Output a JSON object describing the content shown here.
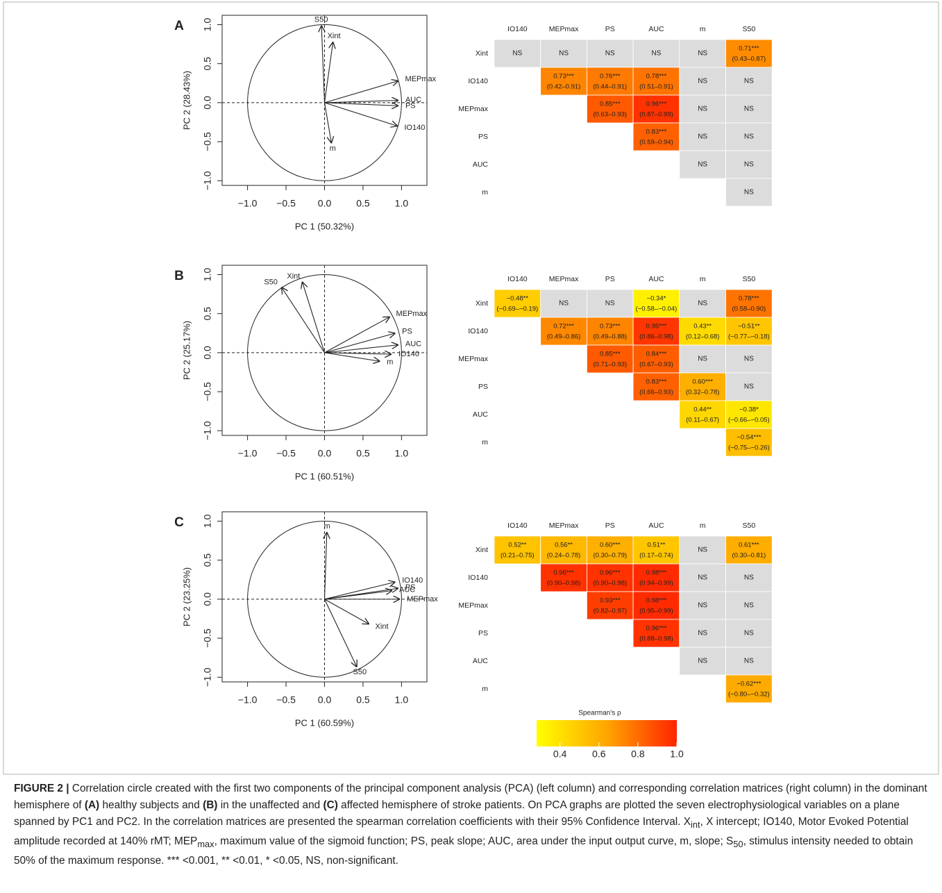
{
  "chart_data": [
    {
      "type": "biplot",
      "panel": "A",
      "xlabel": "PC 1 (50.32%)",
      "ylabel": "PC 2 (28.43%)",
      "xlim": [
        -1.33,
        1.33
      ],
      "ylim": [
        -1.06,
        1.12
      ],
      "xticks": [
        {
          "value": -1,
          "label": "−1.0"
        },
        {
          "value": -0.5,
          "label": "−0.5"
        },
        {
          "value": 0,
          "label": "0.0"
        },
        {
          "value": 0.5,
          "label": "0.5"
        },
        {
          "value": 1,
          "label": "1.0"
        }
      ],
      "yticks": [
        {
          "value": -1,
          "label": "−1.0"
        },
        {
          "value": -0.5,
          "label": "−0.5"
        },
        {
          "value": 0,
          "label": "0.0"
        },
        {
          "value": 0.5,
          "label": "0.5"
        },
        {
          "value": 1,
          "label": "1.0"
        }
      ],
      "labels": [
        "S50",
        "Xint",
        "MEPmax",
        "AUC",
        "PS",
        "IO140",
        "m"
      ],
      "x": [
        -0.04,
        0.11,
        0.96,
        0.96,
        0.96,
        0.95,
        0.09
      ],
      "y": [
        0.99,
        0.78,
        0.28,
        0.03,
        -0.04,
        -0.3,
        -0.52
      ]
    },
    {
      "type": "heatmap",
      "columns": [
        "IO140",
        "MEPmax",
        "PS",
        "AUC",
        "m",
        "S50"
      ],
      "rows": [
        "Xint",
        "IO140",
        "MEPmax",
        "PS",
        "AUC",
        "m"
      ],
      "ns_color": "#dcdcdc",
      "colors": [
        "#ffff00",
        "#ffa500",
        "#ff2400"
      ],
      "clim": [
        0.28,
        1.0
      ],
      "cells": [
        [
          {
            "label": "NS"
          },
          {
            "label": "NS"
          },
          {
            "label": "NS"
          },
          {
            "label": "NS"
          },
          {
            "label": "NS"
          },
          {
            "value": 0.71,
            "label": "0.71***",
            "ci": "(0.43–0.87)"
          }
        ],
        [
          {
            "value": 0.73,
            "label": "0.73***",
            "ci": "(0.42–0.91)"
          },
          {
            "value": 0.76,
            "label": "0.76***",
            "ci": "(0.44–0.91)"
          },
          {
            "value": 0.78,
            "label": "0.78***",
            "ci": "(0.51–0.91)"
          },
          {
            "label": "NS"
          },
          {
            "label": "NS"
          }
        ],
        [
          {
            "value": 0.85,
            "label": "0.85***",
            "ci": "(0.63–0.93)"
          },
          {
            "value": 0.96,
            "label": "0.96***",
            "ci": "(0.87–0.99)"
          },
          {
            "label": "NS"
          },
          {
            "label": "NS"
          }
        ],
        [
          {
            "value": 0.83,
            "label": "0.83***",
            "ci": "(0.59–0.94)"
          },
          {
            "label": "NS"
          },
          {
            "label": "NS"
          }
        ],
        [
          {
            "label": "NS"
          },
          {
            "label": "NS"
          }
        ],
        [
          {
            "label": "NS"
          }
        ]
      ]
    },
    {
      "type": "biplot",
      "panel": "B",
      "xlabel": "PC 1 (60.51%)",
      "ylabel": "PC 2 (25.17%)",
      "xlim": [
        -1.33,
        1.33
      ],
      "ylim": [
        -1.06,
        1.12
      ],
      "xticks": [
        {
          "value": -1,
          "label": "−1.0"
        },
        {
          "value": -0.5,
          "label": "−0.5"
        },
        {
          "value": 0,
          "label": "0.0"
        },
        {
          "value": 0.5,
          "label": "0.5"
        },
        {
          "value": 1,
          "label": "1.0"
        }
      ],
      "yticks": [
        {
          "value": -1,
          "label": "−1.0"
        },
        {
          "value": -0.5,
          "label": "−0.5"
        },
        {
          "value": 0,
          "label": "0.0"
        },
        {
          "value": 0.5,
          "label": "0.5"
        },
        {
          "value": 1,
          "label": "1.0"
        }
      ],
      "labels": [
        "S50",
        "Xint",
        "MEPmax",
        "PS",
        "AUC",
        "IO140",
        "m"
      ],
      "x": [
        -0.56,
        -0.29,
        0.85,
        0.92,
        0.96,
        0.87,
        0.72
      ],
      "y": [
        0.84,
        0.91,
        0.46,
        0.25,
        0.1,
        -0.02,
        -0.11
      ]
    },
    {
      "type": "heatmap",
      "columns": [
        "IO140",
        "MEPmax",
        "PS",
        "AUC",
        "m",
        "S50"
      ],
      "rows": [
        "Xint",
        "IO140",
        "MEPmax",
        "PS",
        "AUC",
        "m"
      ],
      "ns_color": "#dcdcdc",
      "colors": [
        "#ffff00",
        "#ffa500",
        "#ff2400"
      ],
      "clim": [
        0.28,
        1.0
      ],
      "cells": [
        [
          {
            "value": -0.48,
            "label": "−0.48**",
            "ci": "(−0.69–−0.19)"
          },
          {
            "label": "NS"
          },
          {
            "label": "NS"
          },
          {
            "value": -0.34,
            "label": "−0.34*",
            "ci": "(−0.58–−0.04)"
          },
          {
            "label": "NS"
          },
          {
            "value": 0.78,
            "label": "0.78***",
            "ci": "(0.58–0.90)"
          }
        ],
        [
          {
            "value": 0.72,
            "label": "0.72***",
            "ci": "(0.49–0.86)"
          },
          {
            "value": 0.73,
            "label": "0.73***",
            "ci": "(0.49–0.88)"
          },
          {
            "value": 0.95,
            "label": "0.95***",
            "ci": "(0.86–0.98)"
          },
          {
            "value": 0.43,
            "label": "0.43**",
            "ci": "(0.12–0.68)"
          },
          {
            "value": -0.51,
            "label": "−0.51**",
            "ci": "(−0.77–−0.18)"
          }
        ],
        [
          {
            "value": 0.85,
            "label": "0.85***",
            "ci": "(0.71–0.93)"
          },
          {
            "value": 0.84,
            "label": "0.84***",
            "ci": "(0.67–0.93)"
          },
          {
            "label": "NS"
          },
          {
            "label": "NS"
          }
        ],
        [
          {
            "value": 0.83,
            "label": "0.83***",
            "ci": "(0.66–0.93)"
          },
          {
            "value": 0.6,
            "label": "0.60***",
            "ci": "(0.32–0.78)"
          },
          {
            "label": "NS"
          }
        ],
        [
          {
            "value": 0.44,
            "label": "0.44**",
            "ci": "(0.11–0.67)"
          },
          {
            "value": -0.38,
            "label": "−0.38*",
            "ci": "(−0.66–−0.05)"
          }
        ],
        [
          {
            "value": -0.54,
            "label": "−0.54***",
            "ci": "(−0.75–−0.26)"
          }
        ]
      ]
    },
    {
      "type": "biplot",
      "panel": "C",
      "xlabel": "PC 1 (60.59%)",
      "ylabel": "PC 2 (23.25%)",
      "xlim": [
        -1.33,
        1.33
      ],
      "ylim": [
        -1.06,
        1.12
      ],
      "xticks": [
        {
          "value": -1,
          "label": "−1.0"
        },
        {
          "value": -0.5,
          "label": "−0.5"
        },
        {
          "value": 0,
          "label": "0.0"
        },
        {
          "value": 0.5,
          "label": "0.5"
        },
        {
          "value": 1,
          "label": "1.0"
        }
      ],
      "yticks": [
        {
          "value": -1,
          "label": "−1.0"
        },
        {
          "value": -0.5,
          "label": "−0.5"
        },
        {
          "value": 0,
          "label": "0.0"
        },
        {
          "value": 0.5,
          "label": "0.5"
        },
        {
          "value": 1,
          "label": "1.0"
        }
      ],
      "labels": [
        "m",
        "IO140",
        "PS",
        "AUC",
        "MEPmax",
        "Xint",
        "S50"
      ],
      "x": [
        0.03,
        0.92,
        0.96,
        0.88,
        0.98,
        0.58,
        0.42
      ],
      "y": [
        0.86,
        0.22,
        0.14,
        0.11,
        0.0,
        -0.32,
        -0.87
      ]
    },
    {
      "type": "heatmap",
      "columns": [
        "IO140",
        "MEPmax",
        "PS",
        "AUC",
        "m",
        "S50"
      ],
      "rows": [
        "Xint",
        "IO140",
        "MEPmax",
        "PS",
        "AUC",
        "m"
      ],
      "ns_color": "#dcdcdc",
      "colors": [
        "#ffff00",
        "#ffa500",
        "#ff2400"
      ],
      "clim": [
        0.28,
        1.0
      ],
      "cells": [
        [
          {
            "value": 0.52,
            "label": "0.52**",
            "ci": "(0.21–0.75)"
          },
          {
            "value": 0.56,
            "label": "0.56**",
            "ci": "(0.24–0.78)"
          },
          {
            "value": 0.6,
            "label": "0.60***",
            "ci": "(0.30–0.79)"
          },
          {
            "value": 0.51,
            "label": "0.51**",
            "ci": "(0.17–0.74)"
          },
          {
            "label": "NS"
          },
          {
            "value": 0.61,
            "label": "0.61***",
            "ci": "(0.30–0.81)"
          }
        ],
        [
          {
            "value": 0.96,
            "label": "0.96***",
            "ci": "(0.90–0.98)"
          },
          {
            "value": 0.96,
            "label": "0.96***",
            "ci": "(0.90–0.98)"
          },
          {
            "value": 0.98,
            "label": "0.98***",
            "ci": "(0.94–0.99)"
          },
          {
            "label": "NS"
          },
          {
            "label": "NS"
          }
        ],
        [
          {
            "value": 0.93,
            "label": "0.93***",
            "ci": "(0.82–0.97)"
          },
          {
            "value": 0.98,
            "label": "0.98***",
            "ci": "(0.95–0.99)"
          },
          {
            "label": "NS"
          },
          {
            "label": "NS"
          }
        ],
        [
          {
            "value": 0.96,
            "label": "0.96***",
            "ci": "(0.88–0.98)"
          },
          {
            "label": "NS"
          },
          {
            "label": "NS"
          }
        ],
        [
          {
            "label": "NS"
          },
          {
            "label": "NS"
          }
        ],
        [
          {
            "value": -0.62,
            "label": "−0.62***",
            "ci": "(−0.80–−0.32)"
          }
        ]
      ],
      "legend": {
        "title": "Spearman's ρ",
        "ticks": [
          0.4,
          0.6,
          0.8,
          {
            "value": 1,
            "label": "1.0"
          }
        ]
      }
    }
  ],
  "caption": [
    {
      "text": "FIGURE 2 |",
      "bold": true
    },
    {
      "text": " Correlation circle created with the first two components of the principal component analysis (PCA) (left column) and corresponding correlation matrices (right column) in the dominant hemisphere of "
    },
    {
      "text": "(A)",
      "bold": true
    },
    {
      "text": " healthy subjects and "
    },
    {
      "text": "(B)",
      "bold": true
    },
    {
      "text": " in the unaffected and "
    },
    {
      "text": "(C)",
      "bold": true
    },
    {
      "text": " affected hemisphere of stroke patients. On PCA graphs are plotted the seven electrophysiological variables on a plane spanned by PC1 and PC2. In the correlation matrices are presented the spearman correlation coefficients with their 95% Confidence Interval. X"
    },
    {
      "text": "int",
      "sub": true
    },
    {
      "text": ", X intercept; IO140, Motor Evoked Potential amplitude recorded at 140% rMT; MEP"
    },
    {
      "text": "max",
      "sub": true
    },
    {
      "text": ", maximum value of the sigmoid function; PS, peak slope; AUC, area under the input output curve, m, slope; S"
    },
    {
      "text": "50",
      "sub": true
    },
    {
      "text": ", stimulus intensity needed to obtain 50% of the maximum response. *** <0.001, ** <0.01, * <0.05, NS, non-significant."
    }
  ]
}
